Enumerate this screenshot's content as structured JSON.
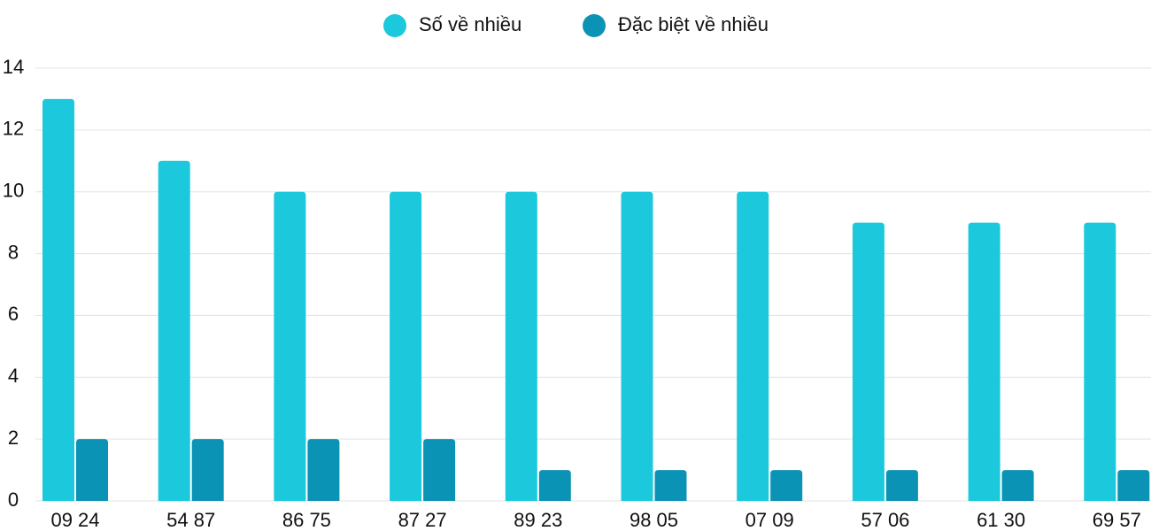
{
  "chart_data": {
    "type": "bar",
    "categories": [
      "09 24",
      "54 87",
      "86 75",
      "87 27",
      "89 23",
      "98 05",
      "07 09",
      "57 06",
      "61 30",
      "69 57"
    ],
    "series": [
      {
        "name": "Số về nhiều",
        "color": "#1bc8dc",
        "values": [
          13,
          11,
          10,
          10,
          10,
          10,
          10,
          9,
          9,
          9
        ]
      },
      {
        "name": "Đặc biệt về nhiều",
        "color": "#0b93b5",
        "values": [
          2,
          2,
          2,
          2,
          1,
          1,
          1,
          1,
          1,
          1
        ]
      }
    ],
    "ylim": [
      0,
      14
    ],
    "yticks": [
      0,
      2,
      4,
      6,
      8,
      10,
      12,
      14
    ],
    "grid": true,
    "legend": "top"
  }
}
